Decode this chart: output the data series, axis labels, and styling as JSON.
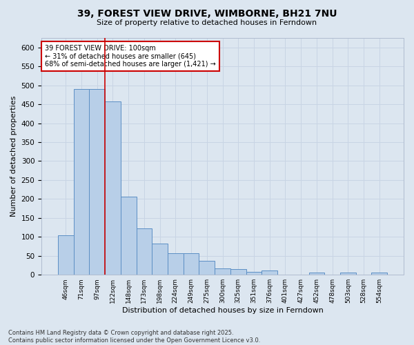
{
  "title": "39, FOREST VIEW DRIVE, WIMBORNE, BH21 7NU",
  "subtitle": "Size of property relative to detached houses in Ferndown",
  "xlabel": "Distribution of detached houses by size in Ferndown",
  "ylabel": "Number of detached properties",
  "footer": "Contains HM Land Registry data © Crown copyright and database right 2025.\nContains public sector information licensed under the Open Government Licence v3.0.",
  "categories": [
    "46sqm",
    "71sqm",
    "97sqm",
    "122sqm",
    "148sqm",
    "173sqm",
    "198sqm",
    "224sqm",
    "249sqm",
    "275sqm",
    "300sqm",
    "325sqm",
    "351sqm",
    "376sqm",
    "401sqm",
    "427sqm",
    "452sqm",
    "478sqm",
    "503sqm",
    "528sqm",
    "554sqm"
  ],
  "values": [
    105,
    490,
    490,
    458,
    207,
    122,
    82,
    57,
    57,
    37,
    16,
    15,
    8,
    11,
    0,
    0,
    5,
    0,
    5,
    0,
    5
  ],
  "bar_color": "#b8cfe8",
  "bar_edge_color": "#5b8ec4",
  "grid_color": "#c8d4e4",
  "background_color": "#dce6f0",
  "vline_x": 2.5,
  "vline_color": "#cc0000",
  "annotation_text": "39 FOREST VIEW DRIVE: 100sqm\n← 31% of detached houses are smaller (645)\n68% of semi-detached houses are larger (1,421) →",
  "annotation_box_color": "#ffffff",
  "annotation_border_color": "#cc0000",
  "ylim": [
    0,
    625
  ],
  "yticks": [
    0,
    50,
    100,
    150,
    200,
    250,
    300,
    350,
    400,
    450,
    500,
    550,
    600
  ]
}
